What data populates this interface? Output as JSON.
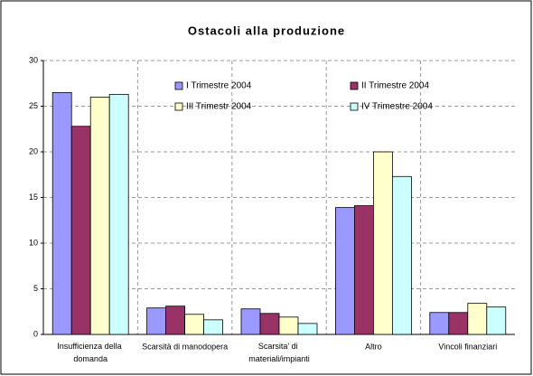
{
  "chart_data": {
    "type": "bar",
    "title": "Ostacoli alla produzione",
    "categories": [
      "Insufficienza della domanda",
      "Scarsità di manodopera",
      "Scarsita' di materiali/impianti",
      "Altro",
      "Vincoli finanziari"
    ],
    "series": [
      {
        "name": "I Trimestre 2004",
        "color": "#9999ff",
        "values": [
          26.5,
          2.9,
          2.8,
          13.9,
          2.4
        ]
      },
      {
        "name": "II Trimestre 2004",
        "color": "#993366",
        "values": [
          22.8,
          3.1,
          2.3,
          14.1,
          2.4
        ]
      },
      {
        "name": "III Trimestr 2004",
        "color": "#ffffcc",
        "values": [
          26.0,
          2.2,
          1.9,
          20.0,
          3.4
        ]
      },
      {
        "name": "IV Trimestre 2004",
        "color": "#ccffff",
        "values": [
          26.3,
          1.6,
          1.2,
          17.3,
          3.0
        ]
      }
    ],
    "ylim": [
      0,
      30
    ],
    "yticks": [
      0,
      5,
      10,
      15,
      20,
      25,
      30
    ],
    "grid": true
  }
}
